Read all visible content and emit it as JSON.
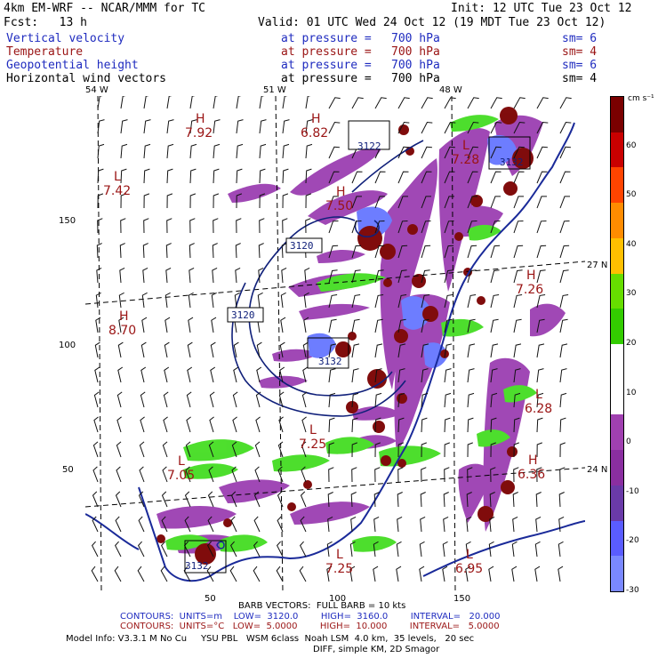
{
  "header": {
    "model": "4km EM-WRF -- NCAR/MMM for TC",
    "init": "Init: 12 UTC Tue 23 Oct 12",
    "fcst": "Fcst:   13 h",
    "valid": "Valid: 01 UTC Wed 24 Oct 12 (19 MDT Tue 23 Oct 12)"
  },
  "fields": [
    {
      "name": "Vertical velocity",
      "at": "at pressure =",
      "level": "700 hPa",
      "sm": "sm= 6",
      "color": "#1f2bbf"
    },
    {
      "name": "Temperature",
      "at": "at pressure =",
      "level": "700 hPa",
      "sm": "sm= 4",
      "color": "#9a1414"
    },
    {
      "name": "Geopotential height",
      "at": "at pressure =",
      "level": "700 hPa",
      "sm": "sm= 6",
      "color": "#1f2bbf"
    },
    {
      "name": "Horizontal wind vectors",
      "at": "at pressure =",
      "level": "700 hPa",
      "sm": "sm= 4",
      "color": "#000000"
    }
  ],
  "map": {
    "lon_labels": [
      "54 W",
      "51 W",
      "48 W"
    ],
    "lat_labels": [
      "27 N",
      "24 N"
    ],
    "y_ticks": [
      "150",
      "100",
      "50"
    ],
    "x_ticks": [
      "50",
      "100",
      "150"
    ],
    "geopotential_labels": [
      "3122",
      "3120",
      "3120",
      "3132",
      "3132",
      "3132"
    ],
    "temp_center_labels": [
      {
        "kind": "H",
        "value": "7.92"
      },
      {
        "kind": "H",
        "value": "6.82"
      },
      {
        "kind": "L",
        "value": "7.42"
      },
      {
        "kind": "H",
        "value": "7.50"
      },
      {
        "kind": "L",
        "value": "7.28"
      },
      {
        "kind": "H",
        "value": "8.70"
      },
      {
        "kind": "L",
        "value": "7.05"
      },
      {
        "kind": "L",
        "value": "7.25"
      },
      {
        "kind": "L",
        "value": "6.95"
      },
      {
        "kind": "H",
        "value": "7.26"
      },
      {
        "kind": "L",
        "value": "6.28"
      },
      {
        "kind": "H",
        "value": "6.36"
      },
      {
        "kind": "L",
        "value": "7.25"
      }
    ]
  },
  "colorbar": {
    "unit": "cm s⁻¹",
    "labels": [
      "60",
      "50",
      "40",
      "30",
      "20",
      "10",
      "0",
      "-10",
      "-20",
      "-30"
    ],
    "colors": [
      "#7a0000",
      "#c90000",
      "#ff4400",
      "#ff8c00",
      "#ffc000",
      "#66dd00",
      "#33cc00",
      "#ffffff",
      "#ffffff",
      "#a040b0",
      "#8a2ea0",
      "#6a3aa8",
      "#5a5cff",
      "#7a88ff"
    ]
  },
  "footer": {
    "barb": "BARB VECTORS:  FULL BARB = 10 kts",
    "contours1": "CONTOURS:  UNITS=m    LOW=  3120.0        HIGH=  3160.0        INTERVAL=   20.000",
    "contours2": "CONTOURS:  UNITS=°C   LOW=  5.0000        HIGH=  10.000        INTERVAL=   5.0000",
    "model_info": "Model Info: V3.3.1 M No Cu     YSU PBL   WSM 6class  Noah LSM  4.0 km,  35 levels,   20 sec",
    "model_info2": "DIFF, simple KM, 2D Smagor"
  }
}
